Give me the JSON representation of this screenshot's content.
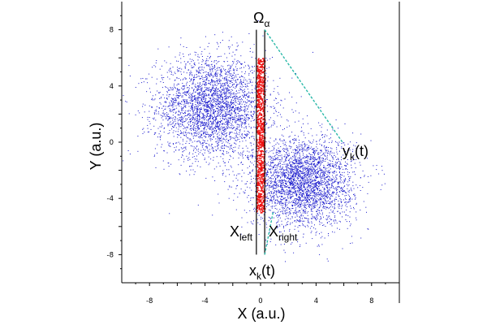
{
  "chart_data": {
    "type": "scatter",
    "title": "",
    "xlabel": "X (a.u.)",
    "ylabel": "Y (a.u.)",
    "xlim": [
      -10,
      10
    ],
    "ylim": [
      -10,
      10
    ],
    "xticks": [
      "-8",
      "-4",
      "0",
      "4",
      "8"
    ],
    "yticks": [
      "8",
      "4",
      "0",
      "-4",
      "-8"
    ],
    "grid": false,
    "colors": {
      "blue_points": "#1a1acc",
      "red_points": "#ee1111",
      "dashed_line": "#2ab8a8",
      "frame": "#000000"
    },
    "clusters": [
      {
        "center": [
          -3.5,
          2.5
        ],
        "std": [
          2.0,
          1.8
        ],
        "color": "blue"
      },
      {
        "center": [
          3.0,
          -2.8
        ],
        "std": [
          1.8,
          1.6
        ],
        "color": "blue"
      }
    ],
    "strip": {
      "x_range": [
        -0.3,
        0.3
      ],
      "y_range": [
        -5.0,
        6.0
      ],
      "color": "red"
    },
    "region": {
      "x_left": -0.3,
      "x_right": 0.3,
      "y_top": 8.0,
      "y_bottom": -8.0
    },
    "projection_lines": [
      {
        "from": [
          0.3,
          8.0
        ],
        "to": [
          5.9,
          0.0
        ]
      },
      {
        "from": [
          0.3,
          -8.0
        ],
        "to": [
          0.9,
          -5.0
        ]
      }
    ],
    "annotations": {
      "omega": {
        "main": "Ω",
        "sub": "α"
      },
      "x_left": {
        "main": "X",
        "sub": "left"
      },
      "x_right": {
        "main": "X",
        "sub": "right"
      },
      "y_k": {
        "main": "y",
        "sub": "k",
        "tail": "(t)"
      },
      "x_k": {
        "main": "x",
        "sub": "k",
        "tail": "(t)"
      }
    }
  }
}
